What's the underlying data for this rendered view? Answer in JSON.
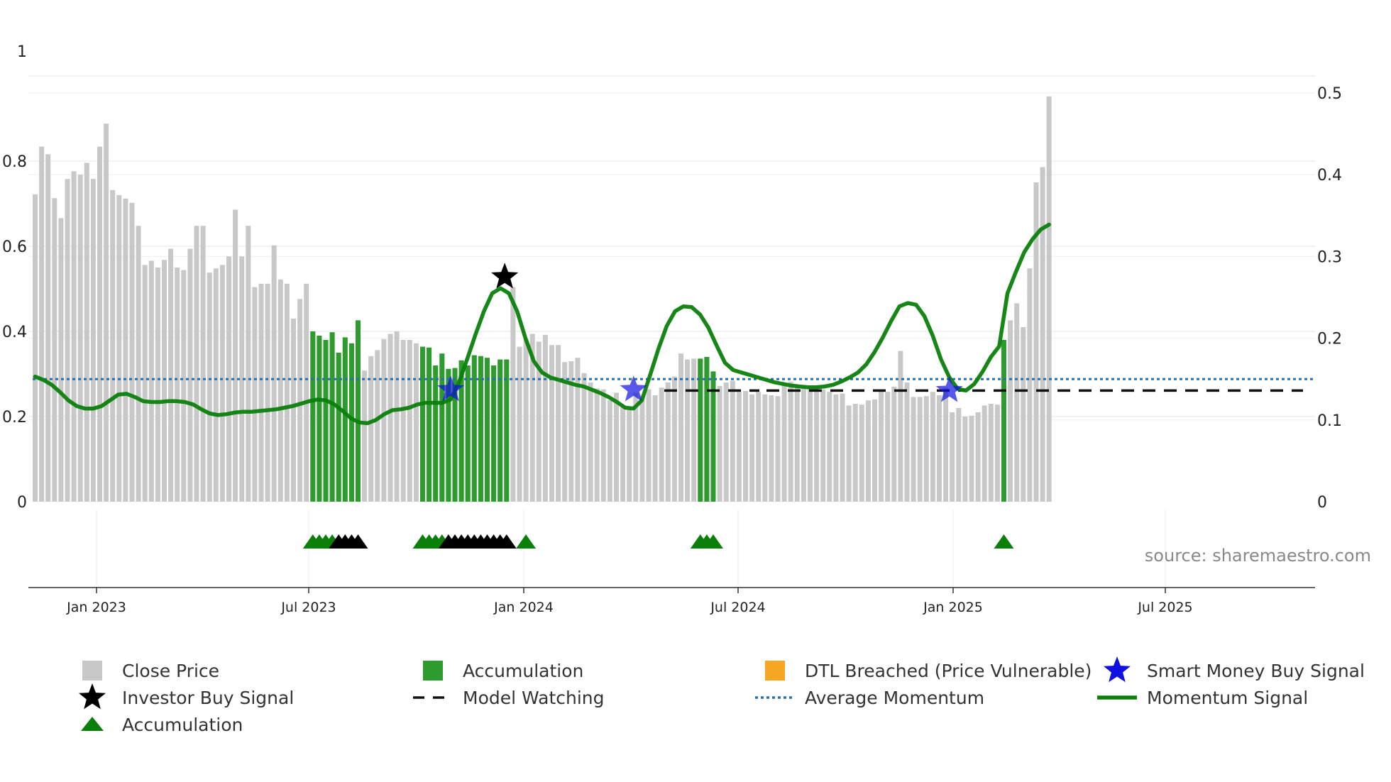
{
  "chart_data": {
    "type": "bar",
    "left_axis": {
      "range": [
        0,
        1
      ],
      "ticks": [
        "0",
        "0.2",
        "0.4",
        "0.6",
        "0.8",
        "1"
      ]
    },
    "right_axis": {
      "range": [
        0,
        0.5
      ],
      "ticks": [
        "0",
        "0.1",
        "0.2",
        "0.3",
        "0.4",
        "0.5"
      ]
    },
    "x_ticks": [
      "Jan 2023",
      "Jul 2023",
      "Jan 2024",
      "Jul 2024",
      "Jan 2025",
      "Jul 2025"
    ],
    "source": "source: sharemaestro.com",
    "colors": {
      "close": "#c8c8c8",
      "accumulation": "#2e9b2e",
      "momentum": "#0a7f0a",
      "average": "#2a6fa8",
      "watching": "#111111",
      "smart_money": "#1010e0",
      "investor": "#000000",
      "dtl": "#f5a623",
      "tri_accum": "#0a7f0a",
      "tri_black": "#000000"
    },
    "close_prices": [
      0.722,
      0.834,
      0.816,
      0.713,
      0.666,
      0.758,
      0.776,
      0.768,
      0.796,
      0.758,
      0.834,
      0.888,
      0.732,
      0.72,
      0.712,
      0.702,
      0.648,
      0.556,
      0.566,
      0.55,
      0.568,
      0.594,
      0.55,
      0.544,
      0.594,
      0.648,
      0.648,
      0.538,
      0.548,
      0.556,
      0.576,
      0.686,
      0.576,
      0.648,
      0.504,
      0.512,
      0.512,
      0.602,
      0.522,
      0.512,
      0.43,
      0.476,
      0.512,
      0.4,
      0.39,
      0.38,
      0.398,
      0.35,
      0.386,
      0.372,
      0.426,
      0.308,
      0.342,
      0.356,
      0.382,
      0.394,
      0.4,
      0.38,
      0.38,
      0.372,
      0.364,
      0.362,
      0.32,
      0.348,
      0.312,
      0.314,
      0.332,
      0.32,
      0.344,
      0.342,
      0.338,
      0.32,
      0.334,
      0.334,
      0.504,
      0.364,
      0.382,
      0.394,
      0.376,
      0.392,
      0.368,
      0.368,
      0.328,
      0.33,
      0.338,
      0.302,
      0.28,
      0.266,
      0.264,
      0.238,
      0.256,
      0.224,
      0.216,
      0.256,
      0.25,
      0.264,
      0.25,
      0.268,
      0.28,
      0.294,
      0.348,
      0.334,
      0.336,
      0.336,
      0.34,
      0.306,
      0.272,
      0.28,
      0.284,
      0.258,
      0.26,
      0.252,
      0.258,
      0.252,
      0.25,
      0.248,
      0.278,
      0.282,
      0.274,
      0.27,
      0.27,
      0.27,
      0.264,
      0.258,
      0.252,
      0.254,
      0.226,
      0.23,
      0.228,
      0.238,
      0.24,
      0.262,
      0.258,
      0.27,
      0.354,
      0.28,
      0.246,
      0.246,
      0.248,
      0.258,
      0.25,
      0.268,
      0.21,
      0.22,
      0.2,
      0.202,
      0.21,
      0.226,
      0.23,
      0.228,
      0.38,
      0.426,
      0.466,
      0.41,
      0.548,
      0.75,
      0.786,
      0.952
    ],
    "accumulation_bars": [
      43,
      44,
      45,
      46,
      47,
      48,
      49,
      50,
      60,
      61,
      62,
      63,
      64,
      65,
      66,
      67,
      68,
      69,
      70,
      71,
      72,
      73,
      103,
      104,
      105,
      150
    ],
    "momentum": [
      [
        0,
        0.153
      ],
      [
        2,
        0.149
      ],
      [
        4,
        0.143
      ],
      [
        6,
        0.134
      ],
      [
        8,
        0.124
      ],
      [
        10,
        0.117
      ],
      [
        12,
        0.114
      ],
      [
        14,
        0.114
      ],
      [
        16,
        0.117
      ],
      [
        18,
        0.124
      ],
      [
        20,
        0.131
      ],
      [
        22,
        0.132
      ],
      [
        24,
        0.128
      ],
      [
        26,
        0.123
      ],
      [
        28,
        0.122
      ],
      [
        30,
        0.122
      ],
      [
        32,
        0.123
      ],
      [
        34,
        0.123
      ],
      [
        36,
        0.122
      ],
      [
        38,
        0.119
      ],
      [
        40,
        0.113
      ],
      [
        42,
        0.108
      ],
      [
        44,
        0.106
      ],
      [
        46,
        0.107
      ],
      [
        48,
        0.109
      ],
      [
        50,
        0.11
      ],
      [
        52,
        0.11
      ],
      [
        54,
        0.111
      ],
      [
        56,
        0.112
      ],
      [
        58,
        0.113
      ],
      [
        60,
        0.115
      ],
      [
        62,
        0.117
      ],
      [
        64,
        0.12
      ],
      [
        66,
        0.123
      ],
      [
        68,
        0.125
      ],
      [
        70,
        0.124
      ],
      [
        72,
        0.119
      ],
      [
        74,
        0.111
      ],
      [
        76,
        0.102
      ],
      [
        78,
        0.097
      ],
      [
        80,
        0.096
      ],
      [
        82,
        0.1
      ],
      [
        84,
        0.107
      ],
      [
        86,
        0.112
      ],
      [
        88,
        0.113
      ],
      [
        90,
        0.115
      ],
      [
        92,
        0.119
      ],
      [
        94,
        0.121
      ],
      [
        96,
        0.121
      ],
      [
        98,
        0.121
      ],
      [
        100,
        0.125
      ],
      [
        102,
        0.146
      ],
      [
        104,
        0.175
      ],
      [
        106,
        0.205
      ],
      [
        108,
        0.233
      ],
      [
        110,
        0.255
      ],
      [
        112,
        0.261
      ],
      [
        114,
        0.255
      ],
      [
        116,
        0.233
      ],
      [
        118,
        0.2
      ],
      [
        120,
        0.172
      ],
      [
        122,
        0.158
      ],
      [
        124,
        0.152
      ],
      [
        126,
        0.149
      ],
      [
        128,
        0.146
      ],
      [
        130,
        0.143
      ],
      [
        132,
        0.141
      ],
      [
        134,
        0.137
      ],
      [
        136,
        0.133
      ],
      [
        138,
        0.128
      ],
      [
        140,
        0.122
      ],
      [
        142,
        0.115
      ],
      [
        144,
        0.114
      ],
      [
        146,
        0.124
      ],
      [
        148,
        0.155
      ],
      [
        150,
        0.187
      ],
      [
        152,
        0.215
      ],
      [
        154,
        0.233
      ],
      [
        156,
        0.239
      ],
      [
        158,
        0.238
      ],
      [
        160,
        0.229
      ],
      [
        162,
        0.213
      ],
      [
        164,
        0.191
      ],
      [
        166,
        0.17
      ],
      [
        168,
        0.161
      ],
      [
        170,
        0.158
      ],
      [
        172,
        0.155
      ],
      [
        174,
        0.152
      ],
      [
        176,
        0.149
      ],
      [
        178,
        0.146
      ],
      [
        180,
        0.144
      ],
      [
        182,
        0.142
      ],
      [
        184,
        0.141
      ],
      [
        186,
        0.14
      ],
      [
        188,
        0.14
      ],
      [
        190,
        0.141
      ],
      [
        192,
        0.143
      ],
      [
        194,
        0.147
      ],
      [
        196,
        0.152
      ],
      [
        198,
        0.158
      ],
      [
        200,
        0.168
      ],
      [
        202,
        0.183
      ],
      [
        204,
        0.201
      ],
      [
        206,
        0.221
      ],
      [
        208,
        0.239
      ],
      [
        210,
        0.243
      ],
      [
        212,
        0.241
      ],
      [
        214,
        0.227
      ],
      [
        216,
        0.203
      ],
      [
        218,
        0.174
      ],
      [
        220,
        0.152
      ],
      [
        222,
        0.138
      ],
      [
        224,
        0.136
      ],
      [
        226,
        0.144
      ],
      [
        228,
        0.159
      ],
      [
        230,
        0.177
      ],
      [
        232,
        0.19
      ],
      [
        234,
        0.255
      ],
      [
        236,
        0.281
      ],
      [
        238,
        0.305
      ],
      [
        240,
        0.321
      ],
      [
        242,
        0.333
      ],
      [
        244,
        0.339
      ]
    ],
    "average_momentum": 0.15,
    "model_watching_level": 0.136,
    "investor_buy_signal": [
      {
        "t": 113,
        "y": 0.275
      }
    ],
    "smart_money_signals": [
      {
        "t": 100,
        "y": 0.137
      },
      {
        "t": 144,
        "y": 0.137
      },
      {
        "t": 220,
        "y": 0.136
      }
    ],
    "triangles": [
      {
        "i": 43,
        "color": "green"
      },
      {
        "i": 44,
        "color": "green"
      },
      {
        "i": 45,
        "color": "green"
      },
      {
        "i": 46,
        "color": "green"
      },
      {
        "i": 47,
        "color": "black"
      },
      {
        "i": 48,
        "color": "black"
      },
      {
        "i": 49,
        "color": "black"
      },
      {
        "i": 50,
        "color": "black"
      },
      {
        "i": 60,
        "color": "green"
      },
      {
        "i": 61,
        "color": "green"
      },
      {
        "i": 62,
        "color": "green"
      },
      {
        "i": 63,
        "color": "green"
      },
      {
        "i": 64,
        "color": "black"
      },
      {
        "i": 65,
        "color": "black"
      },
      {
        "i": 66,
        "color": "black"
      },
      {
        "i": 67,
        "color": "black"
      },
      {
        "i": 68,
        "color": "black"
      },
      {
        "i": 69,
        "color": "black"
      },
      {
        "i": 70,
        "color": "black"
      },
      {
        "i": 71,
        "color": "black"
      },
      {
        "i": 72,
        "color": "black"
      },
      {
        "i": 73,
        "color": "black"
      },
      {
        "i": 76,
        "color": "green"
      },
      {
        "i": 103,
        "color": "green"
      },
      {
        "i": 104,
        "color": "green"
      },
      {
        "i": 105,
        "color": "green"
      },
      {
        "i": 150,
        "color": "green"
      }
    ],
    "legend": [
      {
        "label": "Close Price",
        "kind": "square-gray"
      },
      {
        "label": "Accumulation",
        "kind": "square-green"
      },
      {
        "label": "DTL Breached (Price Vulnerable)",
        "kind": "square-orange"
      },
      {
        "label": "Smart Money Buy Signal",
        "kind": "star-blue"
      },
      {
        "label": "Investor Buy Signal",
        "kind": "star-black"
      },
      {
        "label": "Model Watching",
        "kind": "dash-black"
      },
      {
        "label": "Average Momentum",
        "kind": "dotted-blue"
      },
      {
        "label": "Momentum Signal",
        "kind": "line-green"
      },
      {
        "label": "Accumulation",
        "kind": "triangle-green"
      }
    ]
  }
}
